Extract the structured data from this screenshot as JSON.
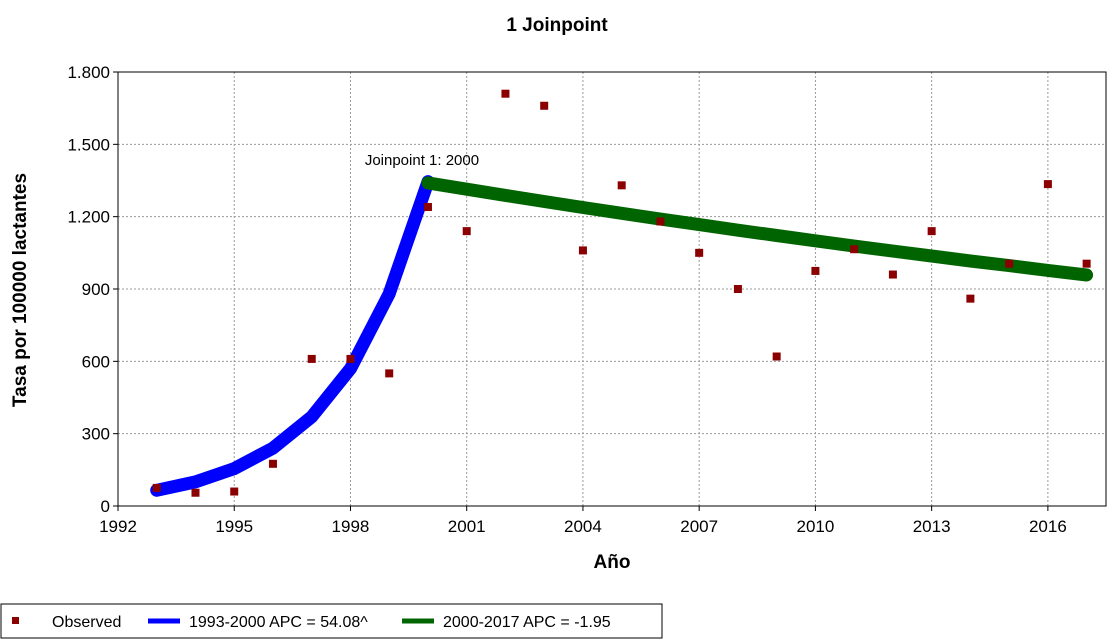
{
  "chart_data": {
    "type": "scatter",
    "title": "1 Joinpoint",
    "xlabel": "Año",
    "ylabel": "Tasa por 100000 lactantes",
    "xlim": [
      1992,
      2017.5
    ],
    "ylim": [
      0,
      1800
    ],
    "x_ticks": [
      1992,
      1995,
      1998,
      2001,
      2004,
      2007,
      2010,
      2013,
      2016
    ],
    "y_ticks": [
      0,
      300,
      600,
      900,
      1200,
      1500,
      1800
    ],
    "y_tick_labels": [
      "0",
      "300",
      "600",
      "900",
      "1.200",
      "1.500",
      "1.800"
    ],
    "grid": true,
    "legend_position": "bottom-left",
    "series": [
      {
        "name": "Observed",
        "kind": "points",
        "color": "#8b0000",
        "x": [
          1993,
          1994,
          1995,
          1996,
          1997,
          1998,
          1999,
          2000,
          2001,
          2002,
          2003,
          2004,
          2005,
          2006,
          2007,
          2008,
          2009,
          2010,
          2011,
          2012,
          2013,
          2014,
          2015,
          2016,
          2017
        ],
        "y": [
          75,
          55,
          60,
          175,
          610,
          610,
          550,
          1240,
          1140,
          1710,
          1660,
          1060,
          1330,
          1180,
          1050,
          900,
          620,
          975,
          1065,
          960,
          1140,
          860,
          1005,
          1335,
          1005
        ]
      },
      {
        "name": "1993-2000 APC  = 54.08^",
        "kind": "line",
        "color": "#0000ff",
        "x": [
          1993,
          1994,
          1995,
          1996,
          1997,
          1998,
          1999,
          2000
        ],
        "y": [
          65,
          100,
          155,
          240,
          370,
          570,
          880,
          1345
        ]
      },
      {
        "name": "2000-2017 APC  = -1.95",
        "kind": "line",
        "color": "#006400",
        "x": [
          2000,
          2001,
          2002,
          2003,
          2004,
          2005,
          2006,
          2007,
          2008,
          2009,
          2010,
          2011,
          2012,
          2013,
          2014,
          2015,
          2016,
          2017
        ],
        "y": [
          1340,
          1314,
          1288,
          1263,
          1238,
          1214,
          1190,
          1167,
          1144,
          1122,
          1100,
          1078,
          1057,
          1037,
          1016,
          997,
          977,
          958
        ]
      }
    ],
    "annotations": [
      {
        "text": "Joinpoint 1:  2000",
        "x": 2000,
        "y": 1340
      }
    ]
  }
}
